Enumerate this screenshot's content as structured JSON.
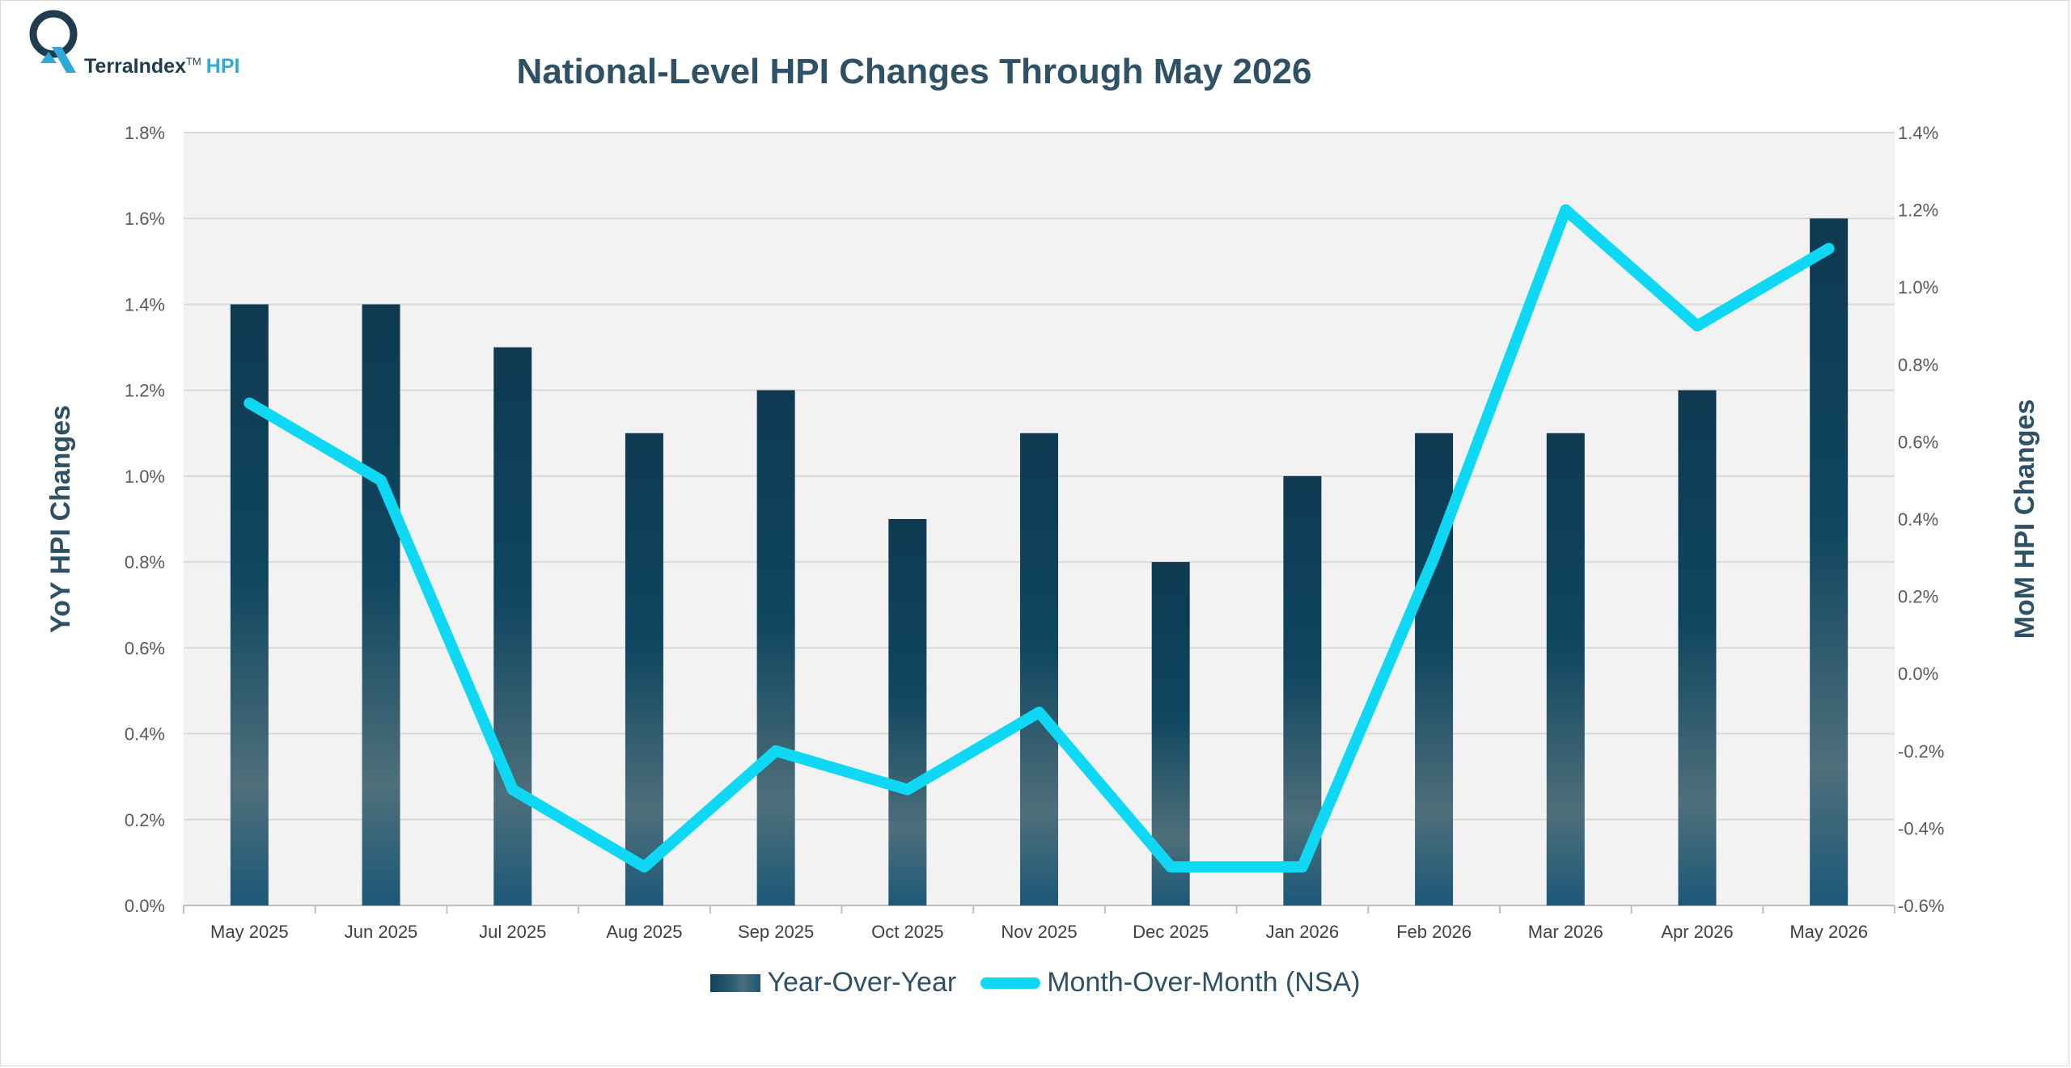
{
  "logo": {
    "word": "TerraIndex",
    "tm": "TM",
    "hpi": "HPI"
  },
  "chart_data": {
    "type": "bar",
    "title": "National-Level HPI Changes Through May 2026",
    "categories": [
      "May 2025",
      "Jun 2025",
      "Jul 2025",
      "Aug 2025",
      "Sep 2025",
      "Oct 2025",
      "Nov 2025",
      "Dec 2025",
      "Jan 2026",
      "Feb 2026",
      "Mar 2026",
      "Apr 2026",
      "May 2026"
    ],
    "series": [
      {
        "name": "Year-Over-Year",
        "type": "bar",
        "axis": "left",
        "values": [
          1.4,
          1.4,
          1.3,
          1.1,
          1.2,
          0.9,
          1.1,
          0.8,
          1.0,
          1.1,
          1.1,
          1.2,
          1.6
        ]
      },
      {
        "name": "Month-Over-Month (NSA)",
        "type": "line",
        "axis": "right",
        "values": [
          0.7,
          0.5,
          -0.3,
          -0.5,
          -0.2,
          -0.3,
          -0.1,
          -0.5,
          -0.5,
          0.3,
          1.2,
          0.9,
          1.1
        ]
      }
    ],
    "ylabel": "YoY HPI Changes",
    "y2label": "MoM HPI Changes",
    "ylim": [
      0,
      1.8
    ],
    "y2lim": [
      -0.6,
      1.4
    ],
    "yticks": [
      "0.0%",
      "0.2%",
      "0.4%",
      "0.6%",
      "0.8%",
      "1.0%",
      "1.2%",
      "1.4%",
      "1.6%",
      "1.8%"
    ],
    "y2ticks": [
      "-0.6%",
      "-0.4%",
      "-0.2%",
      "0.0%",
      "0.2%",
      "0.4%",
      "0.6%",
      "0.8%",
      "1.0%",
      "1.2%",
      "1.4%"
    ],
    "grid": true,
    "legend_position": "bottom",
    "colors": {
      "bar_top": "#0f3a52",
      "bar_mid": "#4e6f7a",
      "bar_bottom": "#1c5878",
      "line": "#0fd8f4",
      "plot_bg": "#f2f2f2",
      "grid": "#d9d9d9",
      "text": "#2e5166"
    }
  }
}
